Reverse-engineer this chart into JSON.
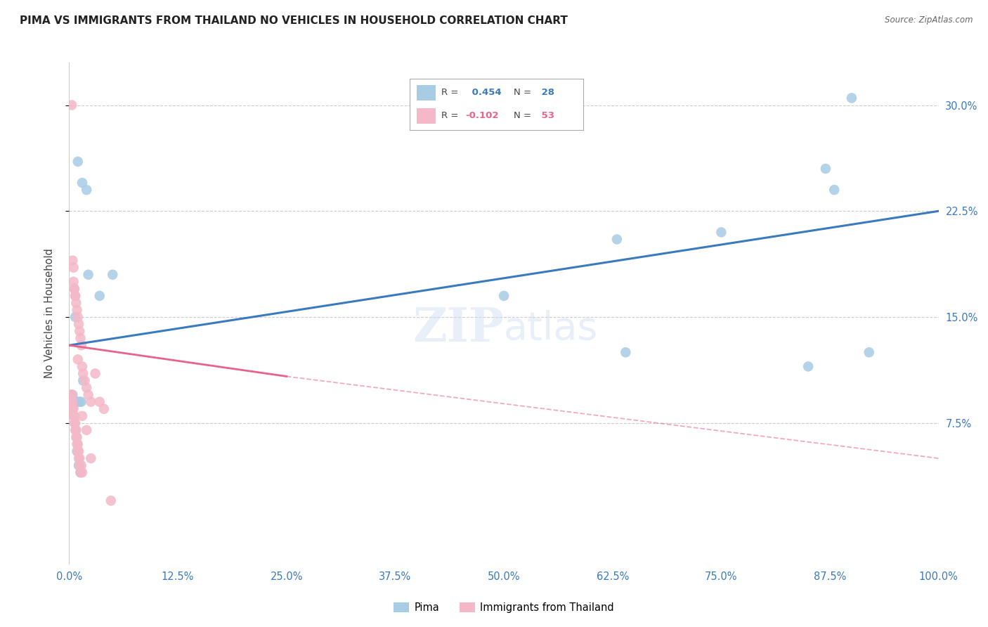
{
  "title": "PIMA VS IMMIGRANTS FROM THAILAND NO VEHICLES IN HOUSEHOLD CORRELATION CHART",
  "source": "Source: ZipAtlas.com",
  "ylabel": "No Vehicles in Household",
  "xlim": [
    0.0,
    100.0
  ],
  "ylim": [
    -2.5,
    33.0
  ],
  "yticks": [
    7.5,
    15.0,
    22.5,
    30.0
  ],
  "xticks": [
    0.0,
    12.5,
    25.0,
    37.5,
    50.0,
    62.5,
    75.0,
    87.5,
    100.0
  ],
  "blue_R": 0.454,
  "blue_N": 28,
  "pink_R": -0.102,
  "pink_N": 53,
  "blue_color": "#a8cce4",
  "pink_color": "#f4b8c8",
  "blue_line_color": "#3a7abf",
  "pink_line_color": "#e8638a",
  "pima_x": [
    1.0,
    1.5,
    2.0,
    2.2,
    0.4,
    0.7,
    0.8,
    1.0,
    1.2,
    1.4,
    0.3,
    0.5,
    0.6,
    0.9,
    1.1,
    1.3,
    3.5,
    5.0,
    50.0,
    63.0,
    75.0,
    87.0,
    88.0,
    90.0,
    85.0,
    92.0,
    64.0,
    1.6
  ],
  "pima_y": [
    26.0,
    24.5,
    24.0,
    18.0,
    9.5,
    15.0,
    9.0,
    9.0,
    9.0,
    9.0,
    9.0,
    9.0,
    9.0,
    5.5,
    4.5,
    4.0,
    16.5,
    18.0,
    16.5,
    20.5,
    21.0,
    25.5,
    24.0,
    30.5,
    11.5,
    12.5,
    12.5,
    10.5
  ],
  "thai_x": [
    0.3,
    0.4,
    0.5,
    0.6,
    0.7,
    0.8,
    0.9,
    1.0,
    1.1,
    1.2,
    1.3,
    1.4,
    0.3,
    0.4,
    0.5,
    0.6,
    0.7,
    0.8,
    0.9,
    1.0,
    1.1,
    1.2,
    1.4,
    1.5,
    0.2,
    0.3,
    0.4,
    0.5,
    0.6,
    0.7,
    0.8,
    0.9,
    1.0,
    1.1,
    1.2,
    1.3,
    1.5,
    1.6,
    1.8,
    2.0,
    2.2,
    2.5,
    3.0,
    3.5,
    4.0,
    0.5,
    0.6,
    0.7,
    1.0,
    1.5,
    2.0,
    2.5,
    4.8
  ],
  "thai_y": [
    30.0,
    19.0,
    18.5,
    17.0,
    16.5,
    16.0,
    15.5,
    15.0,
    14.5,
    14.0,
    13.5,
    13.0,
    9.5,
    9.0,
    8.5,
    8.0,
    7.5,
    7.0,
    6.5,
    6.0,
    5.5,
    5.0,
    4.5,
    4.0,
    9.5,
    9.0,
    8.5,
    8.0,
    7.5,
    7.0,
    6.5,
    6.0,
    5.5,
    5.0,
    4.5,
    4.0,
    11.5,
    11.0,
    10.5,
    10.0,
    9.5,
    9.0,
    11.0,
    9.0,
    8.5,
    17.5,
    17.0,
    16.5,
    12.0,
    8.0,
    7.0,
    5.0,
    2.0
  ],
  "blue_line_x0": 0.0,
  "blue_line_y0": 13.0,
  "blue_line_x1": 100.0,
  "blue_line_y1": 22.5,
  "pink_solid_x0": 0.0,
  "pink_solid_y0": 13.0,
  "pink_solid_x1": 25.0,
  "pink_solid_y1": 10.8,
  "pink_dash_x1": 100.0,
  "pink_dash_y1": 5.0
}
